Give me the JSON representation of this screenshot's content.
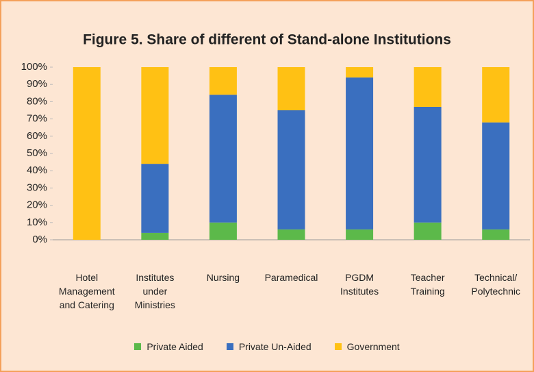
{
  "chart_data": {
    "type": "stacked_bar",
    "title": "Figure 5. Share of different of Stand-alone Institutions",
    "categories": [
      "Hotel Management and Catering",
      "Institutes under Ministries",
      "Nursing",
      "Paramedical",
      "PGDM Institutes",
      "Teacher Training",
      "Technical/ Polytechnic"
    ],
    "series": [
      {
        "name": "Private Aided",
        "color": "#5cb94a",
        "values": [
          0,
          4,
          10,
          6,
          6,
          10,
          6
        ]
      },
      {
        "name": "Private Un-Aided",
        "color": "#3a6fbf",
        "values": [
          0,
          40,
          74,
          69,
          88,
          67,
          62
        ]
      },
      {
        "name": "Government",
        "color": "#ffc114",
        "values": [
          100,
          56,
          16,
          25,
          6,
          23,
          32
        ]
      }
    ],
    "ylim": [
      0,
      100
    ],
    "yticks": [
      {
        "value": 0,
        "label": "0%"
      },
      {
        "value": 10,
        "label": "10%"
      },
      {
        "value": 20,
        "label": "20%"
      },
      {
        "value": 30,
        "label": "30%"
      },
      {
        "value": 40,
        "label": "40%"
      },
      {
        "value": 50,
        "label": "50%"
      },
      {
        "value": 60,
        "label": "60%"
      },
      {
        "value": 70,
        "label": "70%"
      },
      {
        "value": 80,
        "label": "80%"
      },
      {
        "value": 90,
        "label": "90%"
      },
      {
        "value": 100,
        "label": "100%"
      }
    ],
    "legend": "bottom"
  }
}
